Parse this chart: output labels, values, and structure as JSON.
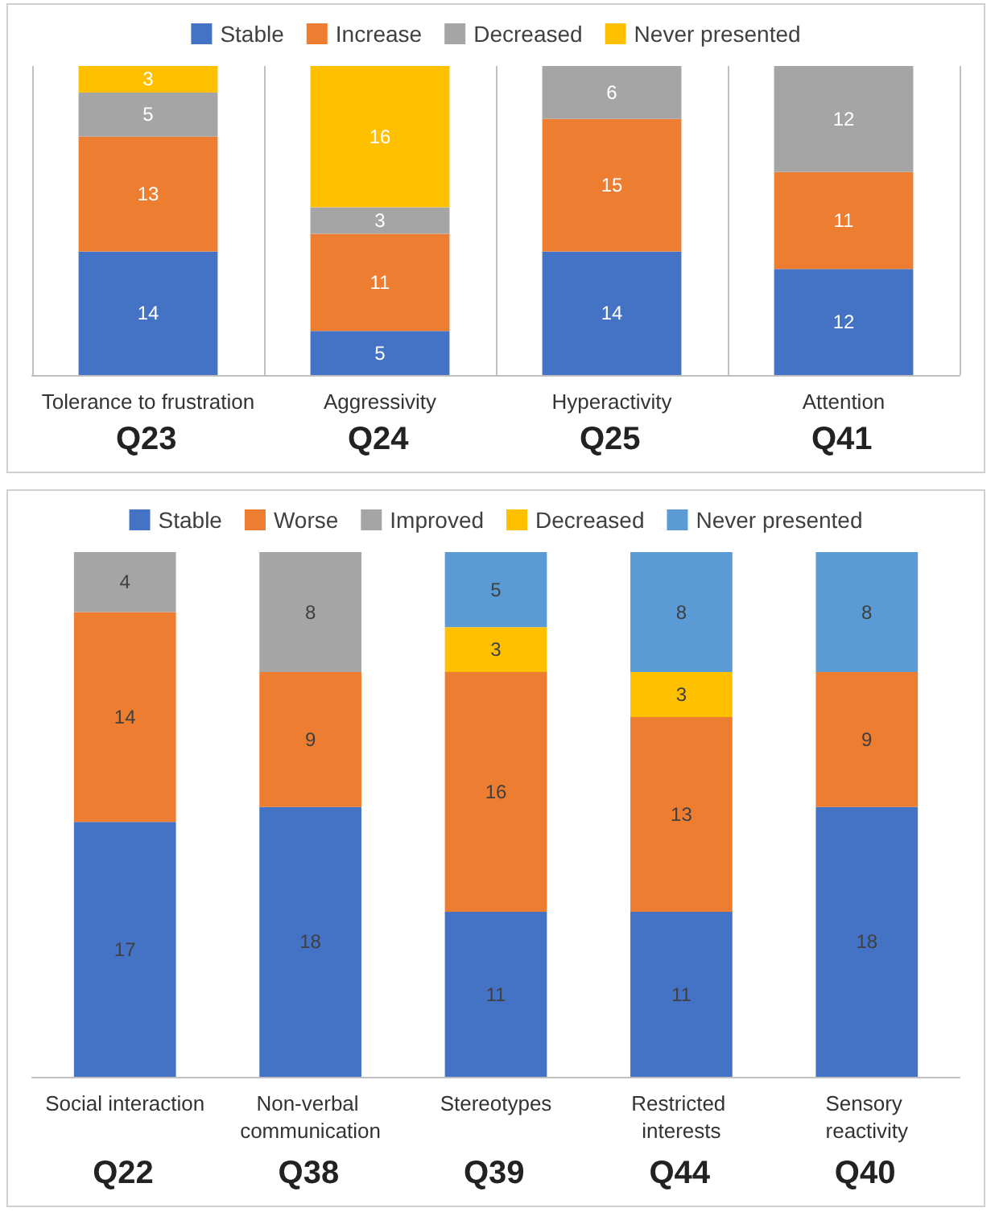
{
  "chart_data": [
    {
      "type": "bar",
      "stacked": true,
      "data_labels": true,
      "grid": "x",
      "legend": "top",
      "categories": [
        "Tolerance to frustration",
        "Aggressivity",
        "Hyperactivity",
        "Attention"
      ],
      "series": [
        {
          "name": "Stable",
          "color": "#4472c4",
          "values": [
            14,
            5,
            14,
            12
          ]
        },
        {
          "name": "Increase",
          "color": "#ed7d31",
          "values": [
            13,
            11,
            15,
            11
          ]
        },
        {
          "name": "Decreased",
          "color": "#a5a5a5",
          "values": [
            5,
            3,
            6,
            12
          ]
        },
        {
          "name": "Never presented",
          "color": "#ffc000",
          "values": [
            3,
            16,
            null,
            null
          ]
        }
      ],
      "annotations": [
        "Q23",
        "Q24",
        "Q25",
        "Q41"
      ]
    },
    {
      "type": "bar",
      "stacked": true,
      "data_labels": true,
      "grid": false,
      "legend": "top",
      "categories": [
        "Social interaction",
        "Non-verbal communication",
        "Stereotypes",
        "Restricted interests",
        "Sensory reactivity"
      ],
      "series": [
        {
          "name": "Stable",
          "color": "#4472c4",
          "values": [
            17,
            18,
            11,
            11,
            18
          ]
        },
        {
          "name": "Worse",
          "color": "#ed7d31",
          "values": [
            14,
            9,
            16,
            13,
            9
          ]
        },
        {
          "name": "Improved",
          "color": "#a5a5a5",
          "values": [
            4,
            8,
            null,
            null,
            null
          ]
        },
        {
          "name": "Decreased",
          "color": "#ffc000",
          "values": [
            null,
            null,
            3,
            3,
            null
          ]
        },
        {
          "name": "Never presented",
          "color": "#5b9bd5",
          "values": [
            null,
            null,
            5,
            8,
            8
          ]
        }
      ],
      "annotations": [
        "Q22",
        "Q38",
        "Q39",
        "Q44",
        "Q40"
      ]
    }
  ]
}
